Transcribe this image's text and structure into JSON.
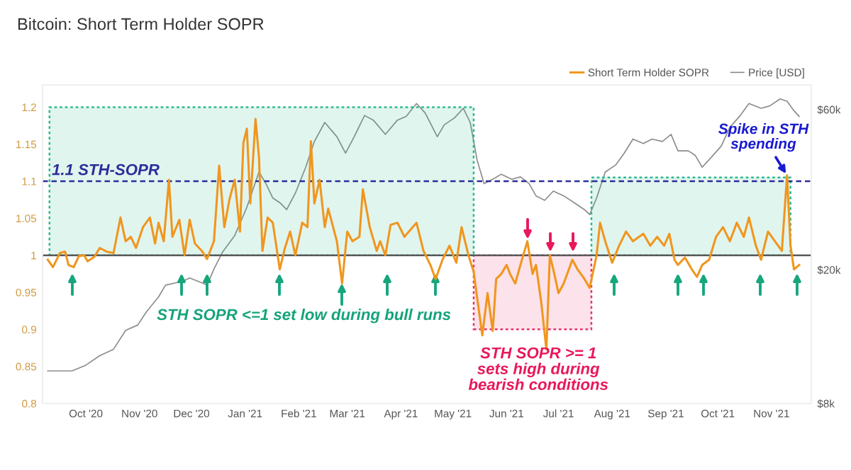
{
  "chart_data": {
    "type": "line",
    "title": "Bitcoin: Short Term Holder SOPR",
    "xlim": [
      "2020-09-06",
      "2021-11-24"
    ],
    "xticks": [
      {
        "value": "2020-10-01",
        "label": "Oct '20"
      },
      {
        "value": "2020-11-01",
        "label": "Nov '20"
      },
      {
        "value": "2020-12-01",
        "label": "Dec '20"
      },
      {
        "value": "2021-01-01",
        "label": "Jan '21"
      },
      {
        "value": "2021-02-01",
        "label": "Feb '21"
      },
      {
        "value": "2021-03-01",
        "label": "Mar '21"
      },
      {
        "value": "2021-04-01",
        "label": "Apr '21"
      },
      {
        "value": "2021-05-01",
        "label": "May '21"
      },
      {
        "value": "2021-06-01",
        "label": "Jun '21"
      },
      {
        "value": "2021-07-01",
        "label": "Jul '21"
      },
      {
        "value": "2021-08-01",
        "label": "Aug '21"
      },
      {
        "value": "2021-09-01",
        "label": "Sep '21"
      },
      {
        "value": "2021-10-01",
        "label": "Oct '21"
      },
      {
        "value": "2021-11-01",
        "label": "Nov '21"
      }
    ],
    "ylim": [
      0.8,
      1.23
    ],
    "yticks": [
      0.8,
      0.85,
      0.9,
      0.95,
      1,
      1.05,
      1.1,
      1.15,
      1.2
    ],
    "y2lim": [
      8000,
      71000
    ],
    "log": "y2",
    "y2ticks": [
      {
        "value": 8000,
        "label": "$8k"
      },
      {
        "value": 20000,
        "label": "$20k"
      },
      {
        "value": 60000,
        "label": "$60k"
      }
    ],
    "legend": "top right",
    "series": [
      {
        "name": "Short Term Holder SOPR",
        "color": "#f0961e",
        "x": [
          "2020-09-09",
          "2020-09-12",
          "2020-09-16",
          "2020-09-19",
          "2020-09-21",
          "2020-09-24",
          "2020-09-27",
          "2020-09-30",
          "2020-10-02",
          "2020-10-06",
          "2020-10-09",
          "2020-10-13",
          "2020-10-17",
          "2020-10-21",
          "2020-10-24",
          "2020-10-27",
          "2020-10-30",
          "2020-11-03",
          "2020-11-07",
          "2020-11-10",
          "2020-11-12",
          "2020-11-15",
          "2020-11-18",
          "2020-11-20",
          "2020-11-24",
          "2020-11-27",
          "2020-11-30",
          "2020-12-03",
          "2020-12-07",
          "2020-12-10",
          "2020-12-14",
          "2020-12-17",
          "2020-12-20",
          "2020-12-23",
          "2020-12-26",
          "2020-12-29",
          "2020-12-31",
          "2021-01-02",
          "2021-01-04",
          "2021-01-07",
          "2021-01-09",
          "2021-01-11",
          "2021-01-14",
          "2021-01-17",
          "2021-01-21",
          "2021-01-24",
          "2021-01-27",
          "2021-01-30",
          "2021-02-03",
          "2021-02-06",
          "2021-02-08",
          "2021-02-10",
          "2021-02-13",
          "2021-02-16",
          "2021-02-18",
          "2021-02-23",
          "2021-02-26",
          "2021-03-01",
          "2021-03-04",
          "2021-03-08",
          "2021-03-10",
          "2021-03-14",
          "2021-03-18",
          "2021-03-20",
          "2021-03-23",
          "2021-03-26",
          "2021-03-30",
          "2021-04-03",
          "2021-04-10",
          "2021-04-14",
          "2021-04-18",
          "2021-04-21",
          "2021-04-25",
          "2021-04-29",
          "2021-05-03",
          "2021-05-06",
          "2021-05-10",
          "2021-05-13",
          "2021-05-15",
          "2021-05-18",
          "2021-05-21",
          "2021-05-24",
          "2021-05-26",
          "2021-05-29",
          "2021-06-01",
          "2021-06-03",
          "2021-06-06",
          "2021-06-09",
          "2021-06-13",
          "2021-06-16",
          "2021-06-18",
          "2021-06-21",
          "2021-06-24",
          "2021-06-26",
          "2021-06-28",
          "2021-07-01",
          "2021-07-04",
          "2021-07-09",
          "2021-07-12",
          "2021-07-16",
          "2021-07-19",
          "2021-07-23",
          "2021-07-25",
          "2021-07-28",
          "2021-08-01",
          "2021-08-05",
          "2021-08-09",
          "2021-08-13",
          "2021-08-19",
          "2021-08-23",
          "2021-08-27",
          "2021-08-31",
          "2021-09-03",
          "2021-09-06",
          "2021-09-08",
          "2021-09-12",
          "2021-09-16",
          "2021-09-19",
          "2021-09-22",
          "2021-09-26",
          "2021-09-30",
          "2021-10-04",
          "2021-10-08",
          "2021-10-12",
          "2021-10-16",
          "2021-10-19",
          "2021-10-23",
          "2021-10-26",
          "2021-10-30",
          "2021-11-03",
          "2021-11-07",
          "2021-11-10",
          "2021-11-12",
          "2021-11-14",
          "2021-11-17"
        ],
        "values": [
          0.994,
          0.984,
          1.003,
          1.005,
          0.987,
          0.984,
          0.999,
          1.0,
          0.992,
          0.998,
          1.01,
          1.005,
          1.003,
          1.051,
          1.019,
          1.025,
          1.01,
          1.038,
          1.051,
          1.016,
          1.044,
          1.019,
          1.102,
          1.025,
          1.048,
          1.0,
          1.048,
          1.016,
          1.006,
          0.995,
          1.019,
          1.121,
          1.038,
          1.076,
          1.102,
          1.032,
          1.152,
          1.171,
          1.07,
          1.184,
          1.133,
          1.006,
          1.051,
          1.044,
          0.981,
          1.01,
          1.032,
          1.0,
          1.044,
          1.038,
          1.154,
          1.07,
          1.102,
          1.038,
          1.063,
          1.019,
          0.962,
          1.032,
          1.019,
          1.025,
          1.089,
          1.038,
          1.006,
          1.019,
          1.0,
          1.041,
          1.044,
          1.025,
          1.044,
          1.006,
          0.987,
          0.968,
          0.994,
          1.013,
          0.99,
          1.038,
          1.0,
          0.978,
          0.943,
          0.892,
          0.949,
          0.898,
          0.968,
          0.975,
          0.987,
          0.975,
          0.962,
          0.987,
          1.019,
          0.975,
          0.987,
          0.937,
          0.873,
          1.0,
          0.981,
          0.949,
          0.962,
          0.994,
          0.981,
          0.968,
          0.956,
          1.0,
          1.044,
          1.019,
          0.99,
          1.013,
          1.032,
          1.019,
          1.029,
          1.013,
          1.025,
          1.013,
          1.029,
          0.994,
          0.987,
          0.997,
          0.981,
          0.971,
          0.987,
          0.994,
          1.025,
          1.038,
          1.019,
          1.044,
          1.025,
          1.051,
          1.013,
          0.994,
          1.032,
          1.019,
          1.006,
          1.108,
          1.013,
          0.981,
          0.987
        ]
      },
      {
        "name": "Price [USD]",
        "color": "#8c8c8c",
        "axis": "y2",
        "x": [
          "2020-09-09",
          "2020-09-23",
          "2020-10-01",
          "2020-10-09",
          "2020-10-17",
          "2020-10-24",
          "2020-10-31",
          "2020-11-05",
          "2020-11-12",
          "2020-11-16",
          "2020-11-22",
          "2020-11-26",
          "2020-11-30",
          "2020-12-07",
          "2020-12-10",
          "2020-12-14",
          "2020-12-19",
          "2020-12-26",
          "2021-01-02",
          "2021-01-09",
          "2021-01-13",
          "2021-01-17",
          "2021-01-21",
          "2021-01-25",
          "2021-01-30",
          "2021-02-05",
          "2021-02-10",
          "2021-02-16",
          "2021-02-23",
          "2021-02-28",
          "2021-03-05",
          "2021-03-11",
          "2021-03-16",
          "2021-03-23",
          "2021-03-30",
          "2021-04-04",
          "2021-04-10",
          "2021-04-15",
          "2021-04-22",
          "2021-04-26",
          "2021-05-02",
          "2021-05-07",
          "2021-05-11",
          "2021-05-15",
          "2021-05-19",
          "2021-05-24",
          "2021-05-29",
          "2021-06-04",
          "2021-06-09",
          "2021-06-14",
          "2021-06-18",
          "2021-06-23",
          "2021-06-28",
          "2021-07-04",
          "2021-07-10",
          "2021-07-16",
          "2021-07-19",
          "2021-07-23",
          "2021-07-28",
          "2021-08-03",
          "2021-08-08",
          "2021-08-13",
          "2021-08-19",
          "2021-08-24",
          "2021-08-30",
          "2021-09-04",
          "2021-09-08",
          "2021-09-14",
          "2021-09-18",
          "2021-09-22",
          "2021-09-27",
          "2021-10-03",
          "2021-10-08",
          "2021-10-14",
          "2021-10-19",
          "2021-10-26",
          "2021-10-31",
          "2021-11-06",
          "2021-11-10",
          "2021-11-14",
          "2021-11-17"
        ],
        "values": [
          10000,
          10000,
          10400,
          11100,
          11600,
          13200,
          13700,
          15000,
          16600,
          18000,
          18300,
          18500,
          18900,
          18300,
          18000,
          20100,
          22600,
          25300,
          30700,
          39100,
          36100,
          32700,
          31700,
          30200,
          33800,
          40400,
          48200,
          54900,
          49800,
          44500,
          49800,
          57600,
          55800,
          50600,
          55800,
          57200,
          62500,
          58600,
          49800,
          54000,
          56700,
          60500,
          54900,
          42400,
          36100,
          37200,
          38500,
          37200,
          37800,
          36100,
          33200,
          32200,
          34300,
          33200,
          31700,
          30200,
          29200,
          32700,
          39100,
          41000,
          44500,
          49000,
          47500,
          49000,
          48200,
          50600,
          45200,
          45200,
          43800,
          40400,
          43100,
          46700,
          53100,
          57600,
          62500,
          60500,
          61500,
          64500,
          63500,
          59500,
          57200
        ]
      }
    ],
    "ref_lines": [
      {
        "axis": "y",
        "value": 1.1,
        "label": "1.1 STH-SOPR",
        "color": "#2d2d9a",
        "line_style": "dashed"
      },
      {
        "axis": "y",
        "value": 1.0,
        "color": "#5a5a5a",
        "line_style": "solid"
      }
    ],
    "bands": [
      {
        "axis": "x",
        "from": "2020-09-10",
        "to": "2021-05-13",
        "color": "#2cb98e"
      },
      {
        "axis": "x",
        "from": "2021-05-13",
        "to": "2021-07-20",
        "color": "#e8336b"
      },
      {
        "axis": "x",
        "from": "2021-07-20",
        "to": "2021-11-12",
        "color": "#2cb98e"
      }
    ],
    "annotations": [
      "STH SOPR <=1 set low during bull runs",
      "STH SOPR >= 1\nsets high during\nbearish conditions",
      {
        "text": "Spike in STH\nspending",
        "x": "2021-11-10",
        "y": 1.108
      }
    ]
  }
}
